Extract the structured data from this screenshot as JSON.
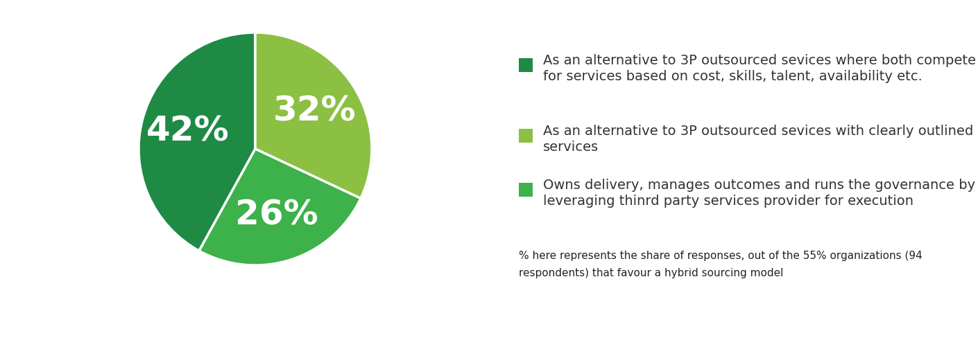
{
  "chart_data": {
    "type": "pie",
    "categories": [
      "As an alternative to 3P outsourced sevices where both compete for services based on cost, skills, talent, availability etc.",
      "As an alternative to 3P outsourced sevices with clearly outlined services",
      "Owns delivery, manages outcomes and runs the governance by leveraging thinrd party services provider for execution"
    ],
    "values": [
      42,
      32,
      26
    ],
    "value_labels": [
      "42%",
      "32%",
      "26%"
    ],
    "colors": [
      "#1e8a44",
      "#8bc043",
      "#3db14a"
    ],
    "data_labels": true,
    "legend": "right",
    "annotation": "% here represents the share of responses, out of the 55% organizations (94 respondents) that favour a hybrid sourcing model"
  }
}
